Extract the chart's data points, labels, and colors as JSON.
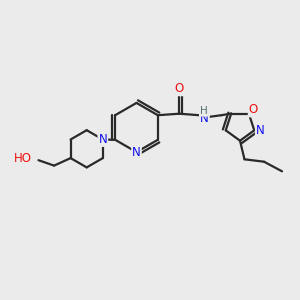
{
  "bg_color": "#ebebeb",
  "bond_color": "#2a2a2a",
  "bond_width": 1.6,
  "atom_colors": {
    "N": "#1010ee",
    "O": "#ee1010",
    "C": "#2a2a2a"
  },
  "font_size": 8.5,
  "fig_width": 3.0,
  "fig_height": 3.0,
  "dpi": 100,
  "xlim": [
    0,
    10
  ],
  "ylim": [
    0,
    10
  ]
}
